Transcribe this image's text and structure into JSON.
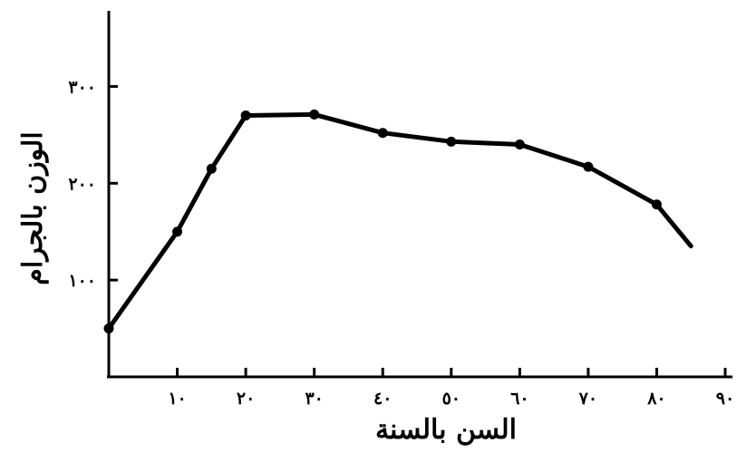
{
  "chart_data": {
    "type": "line",
    "xlabel": "السن بالسنة",
    "ylabel": "الوزن بالجرام",
    "xlim": [
      0,
      90
    ],
    "ylim": [
      0,
      350
    ],
    "x_ticks": [
      10,
      20,
      30,
      40,
      50,
      60,
      70,
      80,
      90
    ],
    "x_tick_labels": [
      "١٠",
      "٢٠",
      "٣٠",
      "٤٠",
      "٥٠",
      "٦٠",
      "٧٠",
      "٨٠",
      "٩٠"
    ],
    "y_ticks": [
      100,
      200,
      300
    ],
    "y_tick_labels": [
      "١٠٠",
      "٢٠٠",
      "٣٠٠"
    ],
    "grid": false,
    "line_color": "#000000",
    "series": [
      {
        "x": [
          0,
          10,
          15,
          20,
          30,
          40,
          50,
          60,
          70,
          80,
          85
        ],
        "y": [
          50,
          150,
          215,
          270,
          271,
          252,
          243,
          240,
          217,
          178,
          135
        ],
        "markers": [
          true,
          true,
          true,
          true,
          true,
          true,
          true,
          true,
          true,
          true,
          false
        ]
      }
    ]
  }
}
